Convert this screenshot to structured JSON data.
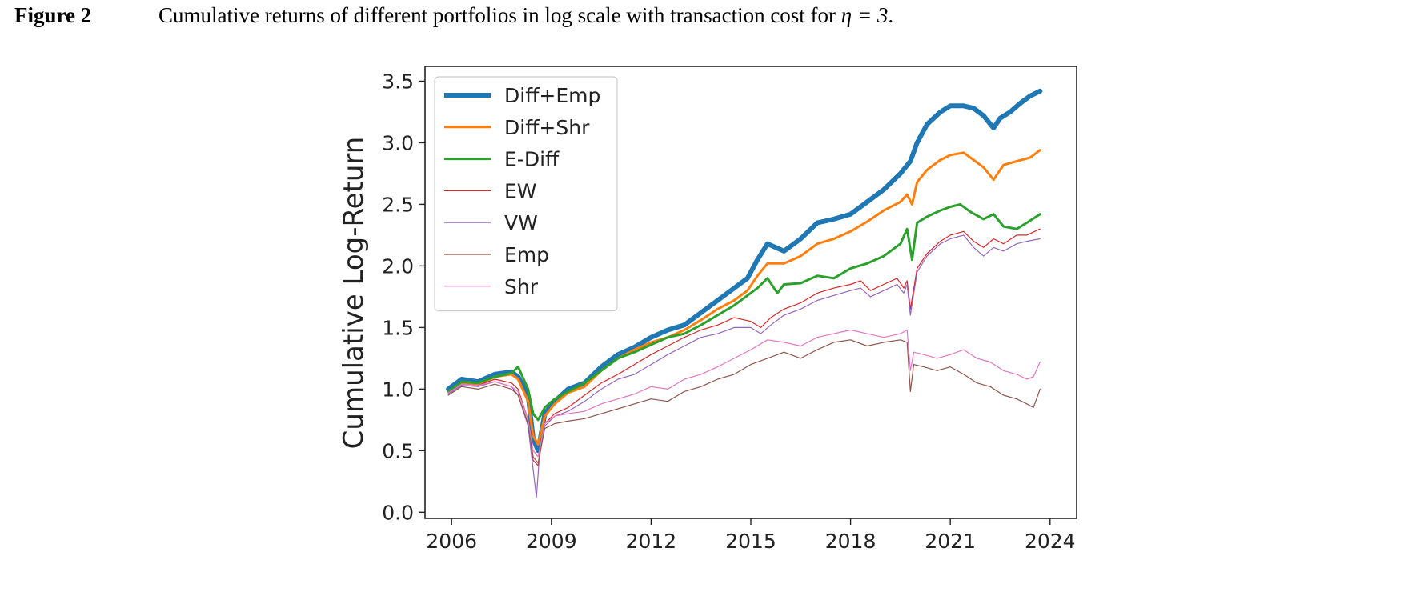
{
  "caption": {
    "label": "Figure 2",
    "text_before_math": "Cumulative returns of different portfolios in log scale with transaction cost for ",
    "math": "η = 3",
    "text_after_math": "."
  },
  "chart_data": {
    "type": "line",
    "title": "",
    "xlabel": "",
    "ylabel": "Cumulative Log-Return",
    "xlim": [
      2005.2,
      2024.8
    ],
    "ylim": [
      -0.05,
      3.62
    ],
    "xticks": [
      "2006",
      "2009",
      "2012",
      "2015",
      "2018",
      "2021",
      "2024"
    ],
    "yticks": [
      "0.0",
      "0.5",
      "1.0",
      "1.5",
      "2.0",
      "2.5",
      "3.0",
      "3.5"
    ],
    "grid": false,
    "legend_position": "upper-left",
    "series": [
      {
        "name": "Diff+Emp",
        "color": "#1f77b4",
        "width": 6,
        "x": [
          2005.9,
          2006.3,
          2006.8,
          2007.3,
          2007.8,
          2008.0,
          2008.3,
          2008.45,
          2008.6,
          2008.8,
          2009.1,
          2009.5,
          2010.0,
          2010.5,
          2011.0,
          2011.5,
          2012.0,
          2012.5,
          2013.0,
          2013.5,
          2014.0,
          2014.5,
          2014.9,
          2015.2,
          2015.5,
          2016.0,
          2016.5,
          2017.0,
          2017.5,
          2018.0,
          2018.5,
          2019.0,
          2019.5,
          2019.8,
          2020.0,
          2020.3,
          2020.7,
          2021.0,
          2021.4,
          2021.7,
          2022.0,
          2022.3,
          2022.5,
          2022.8,
          2023.1,
          2023.4,
          2023.7
        ],
        "y": [
          1.0,
          1.08,
          1.06,
          1.12,
          1.14,
          1.1,
          0.95,
          0.6,
          0.5,
          0.8,
          0.9,
          1.0,
          1.05,
          1.18,
          1.28,
          1.34,
          1.42,
          1.48,
          1.52,
          1.62,
          1.72,
          1.82,
          1.9,
          2.05,
          2.18,
          2.12,
          2.22,
          2.35,
          2.38,
          2.42,
          2.52,
          2.62,
          2.75,
          2.85,
          3.0,
          3.15,
          3.25,
          3.3,
          3.3,
          3.28,
          3.22,
          3.12,
          3.2,
          3.25,
          3.32,
          3.38,
          3.42
        ]
      },
      {
        "name": "Diff+Shr",
        "color": "#ff7f0e",
        "width": 3,
        "x": [
          2005.9,
          2006.3,
          2006.8,
          2007.3,
          2007.8,
          2008.0,
          2008.3,
          2008.45,
          2008.6,
          2008.8,
          2009.1,
          2009.5,
          2010.0,
          2010.5,
          2011.0,
          2011.5,
          2012.0,
          2012.5,
          2013.0,
          2013.5,
          2014.0,
          2014.5,
          2014.9,
          2015.2,
          2015.5,
          2016.0,
          2016.5,
          2017.0,
          2017.5,
          2018.0,
          2018.5,
          2019.0,
          2019.5,
          2019.7,
          2019.85,
          2020.0,
          2020.3,
          2020.7,
          2021.0,
          2021.4,
          2021.7,
          2022.0,
          2022.3,
          2022.6,
          2023.0,
          2023.4,
          2023.7
        ],
        "y": [
          0.98,
          1.05,
          1.04,
          1.1,
          1.12,
          1.08,
          0.9,
          0.62,
          0.55,
          0.78,
          0.88,
          0.97,
          1.02,
          1.15,
          1.25,
          1.32,
          1.38,
          1.42,
          1.48,
          1.56,
          1.65,
          1.72,
          1.8,
          1.92,
          2.02,
          2.02,
          2.08,
          2.18,
          2.22,
          2.28,
          2.36,
          2.45,
          2.52,
          2.58,
          2.5,
          2.68,
          2.78,
          2.86,
          2.9,
          2.92,
          2.86,
          2.8,
          2.7,
          2.82,
          2.85,
          2.88,
          2.94
        ]
      },
      {
        "name": "E-Diff",
        "color": "#2ca02c",
        "width": 3,
        "x": [
          2005.9,
          2006.3,
          2006.8,
          2007.3,
          2007.8,
          2008.0,
          2008.3,
          2008.45,
          2008.6,
          2008.8,
          2009.1,
          2009.5,
          2010.0,
          2010.5,
          2011.0,
          2011.5,
          2012.0,
          2012.5,
          2013.0,
          2013.5,
          2014.0,
          2014.5,
          2014.9,
          2015.2,
          2015.5,
          2015.8,
          2016.0,
          2016.5,
          2017.0,
          2017.5,
          2018.0,
          2018.5,
          2019.0,
          2019.5,
          2019.7,
          2019.85,
          2020.0,
          2020.3,
          2020.7,
          2021.0,
          2021.3,
          2021.6,
          2022.0,
          2022.3,
          2022.6,
          2023.0,
          2023.3,
          2023.7
        ],
        "y": [
          0.98,
          1.06,
          1.05,
          1.1,
          1.13,
          1.18,
          1.0,
          0.8,
          0.75,
          0.85,
          0.92,
          0.98,
          1.05,
          1.15,
          1.25,
          1.3,
          1.36,
          1.42,
          1.45,
          1.52,
          1.6,
          1.68,
          1.76,
          1.82,
          1.9,
          1.78,
          1.85,
          1.86,
          1.92,
          1.9,
          1.98,
          2.02,
          2.08,
          2.18,
          2.3,
          2.05,
          2.35,
          2.4,
          2.45,
          2.48,
          2.5,
          2.44,
          2.38,
          2.42,
          2.32,
          2.3,
          2.35,
          2.42
        ]
      },
      {
        "name": "EW",
        "color": "#d62728",
        "width": 1.2,
        "x": [
          2005.9,
          2006.3,
          2006.8,
          2007.3,
          2007.8,
          2008.0,
          2008.3,
          2008.45,
          2008.6,
          2008.8,
          2009.1,
          2009.5,
          2010.0,
          2010.5,
          2011.0,
          2011.5,
          2012.0,
          2012.5,
          2013.0,
          2013.5,
          2014.0,
          2014.5,
          2015.0,
          2015.3,
          2015.6,
          2016.0,
          2016.5,
          2017.0,
          2017.5,
          2018.0,
          2018.3,
          2018.6,
          2019.0,
          2019.4,
          2019.6,
          2019.7,
          2019.8,
          2020.0,
          2020.3,
          2020.7,
          2021.0,
          2021.4,
          2021.7,
          2022.0,
          2022.3,
          2022.6,
          2023.0,
          2023.3,
          2023.7
        ],
        "y": [
          0.97,
          1.04,
          1.03,
          1.08,
          1.05,
          1.0,
          0.75,
          0.42,
          0.38,
          0.72,
          0.8,
          0.85,
          0.95,
          1.05,
          1.12,
          1.2,
          1.28,
          1.35,
          1.42,
          1.48,
          1.52,
          1.58,
          1.55,
          1.5,
          1.58,
          1.65,
          1.7,
          1.78,
          1.82,
          1.85,
          1.88,
          1.8,
          1.85,
          1.9,
          1.82,
          1.88,
          1.65,
          1.98,
          2.1,
          2.2,
          2.25,
          2.28,
          2.2,
          2.15,
          2.22,
          2.18,
          2.25,
          2.25,
          2.3
        ]
      },
      {
        "name": "VW",
        "color": "#9467bd",
        "width": 1.2,
        "x": [
          2005.9,
          2006.3,
          2006.8,
          2007.3,
          2007.8,
          2008.0,
          2008.3,
          2008.45,
          2008.55,
          2008.65,
          2008.8,
          2009.1,
          2009.5,
          2010.0,
          2010.5,
          2011.0,
          2011.5,
          2012.0,
          2012.5,
          2013.0,
          2013.5,
          2014.0,
          2014.5,
          2015.0,
          2015.3,
          2015.6,
          2016.0,
          2016.5,
          2017.0,
          2017.5,
          2018.0,
          2018.3,
          2018.6,
          2019.0,
          2019.4,
          2019.6,
          2019.7,
          2019.8,
          2020.0,
          2020.3,
          2020.7,
          2021.0,
          2021.4,
          2021.7,
          2022.0,
          2022.3,
          2022.6,
          2023.0,
          2023.3,
          2023.7
        ],
        "y": [
          0.96,
          1.03,
          1.02,
          1.06,
          1.02,
          0.95,
          0.7,
          0.35,
          0.12,
          0.5,
          0.7,
          0.78,
          0.82,
          0.9,
          1.0,
          1.08,
          1.12,
          1.2,
          1.28,
          1.35,
          1.42,
          1.45,
          1.5,
          1.5,
          1.45,
          1.52,
          1.6,
          1.65,
          1.72,
          1.76,
          1.8,
          1.82,
          1.75,
          1.8,
          1.85,
          1.78,
          1.85,
          1.6,
          1.95,
          2.08,
          2.18,
          2.22,
          2.25,
          2.15,
          2.08,
          2.15,
          2.12,
          2.18,
          2.2,
          2.22
        ]
      },
      {
        "name": "Emp",
        "color": "#8c564b",
        "width": 1.2,
        "x": [
          2005.9,
          2006.3,
          2006.8,
          2007.3,
          2007.8,
          2008.0,
          2008.3,
          2008.45,
          2008.6,
          2008.8,
          2009.1,
          2009.5,
          2010.0,
          2010.5,
          2011.0,
          2011.5,
          2012.0,
          2012.5,
          2013.0,
          2013.5,
          2014.0,
          2014.5,
          2015.0,
          2015.5,
          2016.0,
          2016.5,
          2017.0,
          2017.5,
          2018.0,
          2018.5,
          2019.0,
          2019.5,
          2019.7,
          2019.8,
          2019.9,
          2020.2,
          2020.6,
          2021.0,
          2021.4,
          2021.8,
          2022.2,
          2022.6,
          2023.0,
          2023.3,
          2023.5,
          2023.7
        ],
        "y": [
          0.95,
          1.02,
          1.0,
          1.04,
          1.0,
          0.95,
          0.72,
          0.45,
          0.4,
          0.68,
          0.72,
          0.74,
          0.76,
          0.8,
          0.84,
          0.88,
          0.92,
          0.9,
          0.98,
          1.02,
          1.08,
          1.12,
          1.2,
          1.25,
          1.3,
          1.25,
          1.32,
          1.38,
          1.4,
          1.35,
          1.38,
          1.4,
          1.38,
          0.98,
          1.2,
          1.18,
          1.15,
          1.18,
          1.12,
          1.05,
          1.02,
          0.95,
          0.92,
          0.88,
          0.85,
          1.0
        ]
      },
      {
        "name": "Shr",
        "color": "#e377c2",
        "width": 1.2,
        "x": [
          2005.9,
          2006.3,
          2006.8,
          2007.3,
          2007.8,
          2008.0,
          2008.3,
          2008.45,
          2008.6,
          2008.8,
          2009.1,
          2009.5,
          2010.0,
          2010.5,
          2011.0,
          2011.5,
          2012.0,
          2012.5,
          2013.0,
          2013.5,
          2014.0,
          2014.5,
          2015.0,
          2015.5,
          2016.0,
          2016.5,
          2017.0,
          2017.5,
          2018.0,
          2018.5,
          2019.0,
          2019.5,
          2019.7,
          2019.8,
          2019.9,
          2020.2,
          2020.6,
          2021.0,
          2021.4,
          2021.8,
          2022.2,
          2022.6,
          2023.0,
          2023.3,
          2023.5,
          2023.7
        ],
        "y": [
          0.97,
          1.04,
          1.03,
          1.06,
          1.02,
          0.98,
          0.75,
          0.5,
          0.45,
          0.72,
          0.78,
          0.8,
          0.82,
          0.88,
          0.92,
          0.96,
          1.02,
          1.0,
          1.08,
          1.12,
          1.18,
          1.25,
          1.32,
          1.4,
          1.38,
          1.35,
          1.42,
          1.45,
          1.48,
          1.45,
          1.42,
          1.45,
          1.48,
          1.15,
          1.3,
          1.28,
          1.25,
          1.28,
          1.32,
          1.25,
          1.22,
          1.15,
          1.12,
          1.08,
          1.1,
          1.22
        ]
      }
    ]
  }
}
